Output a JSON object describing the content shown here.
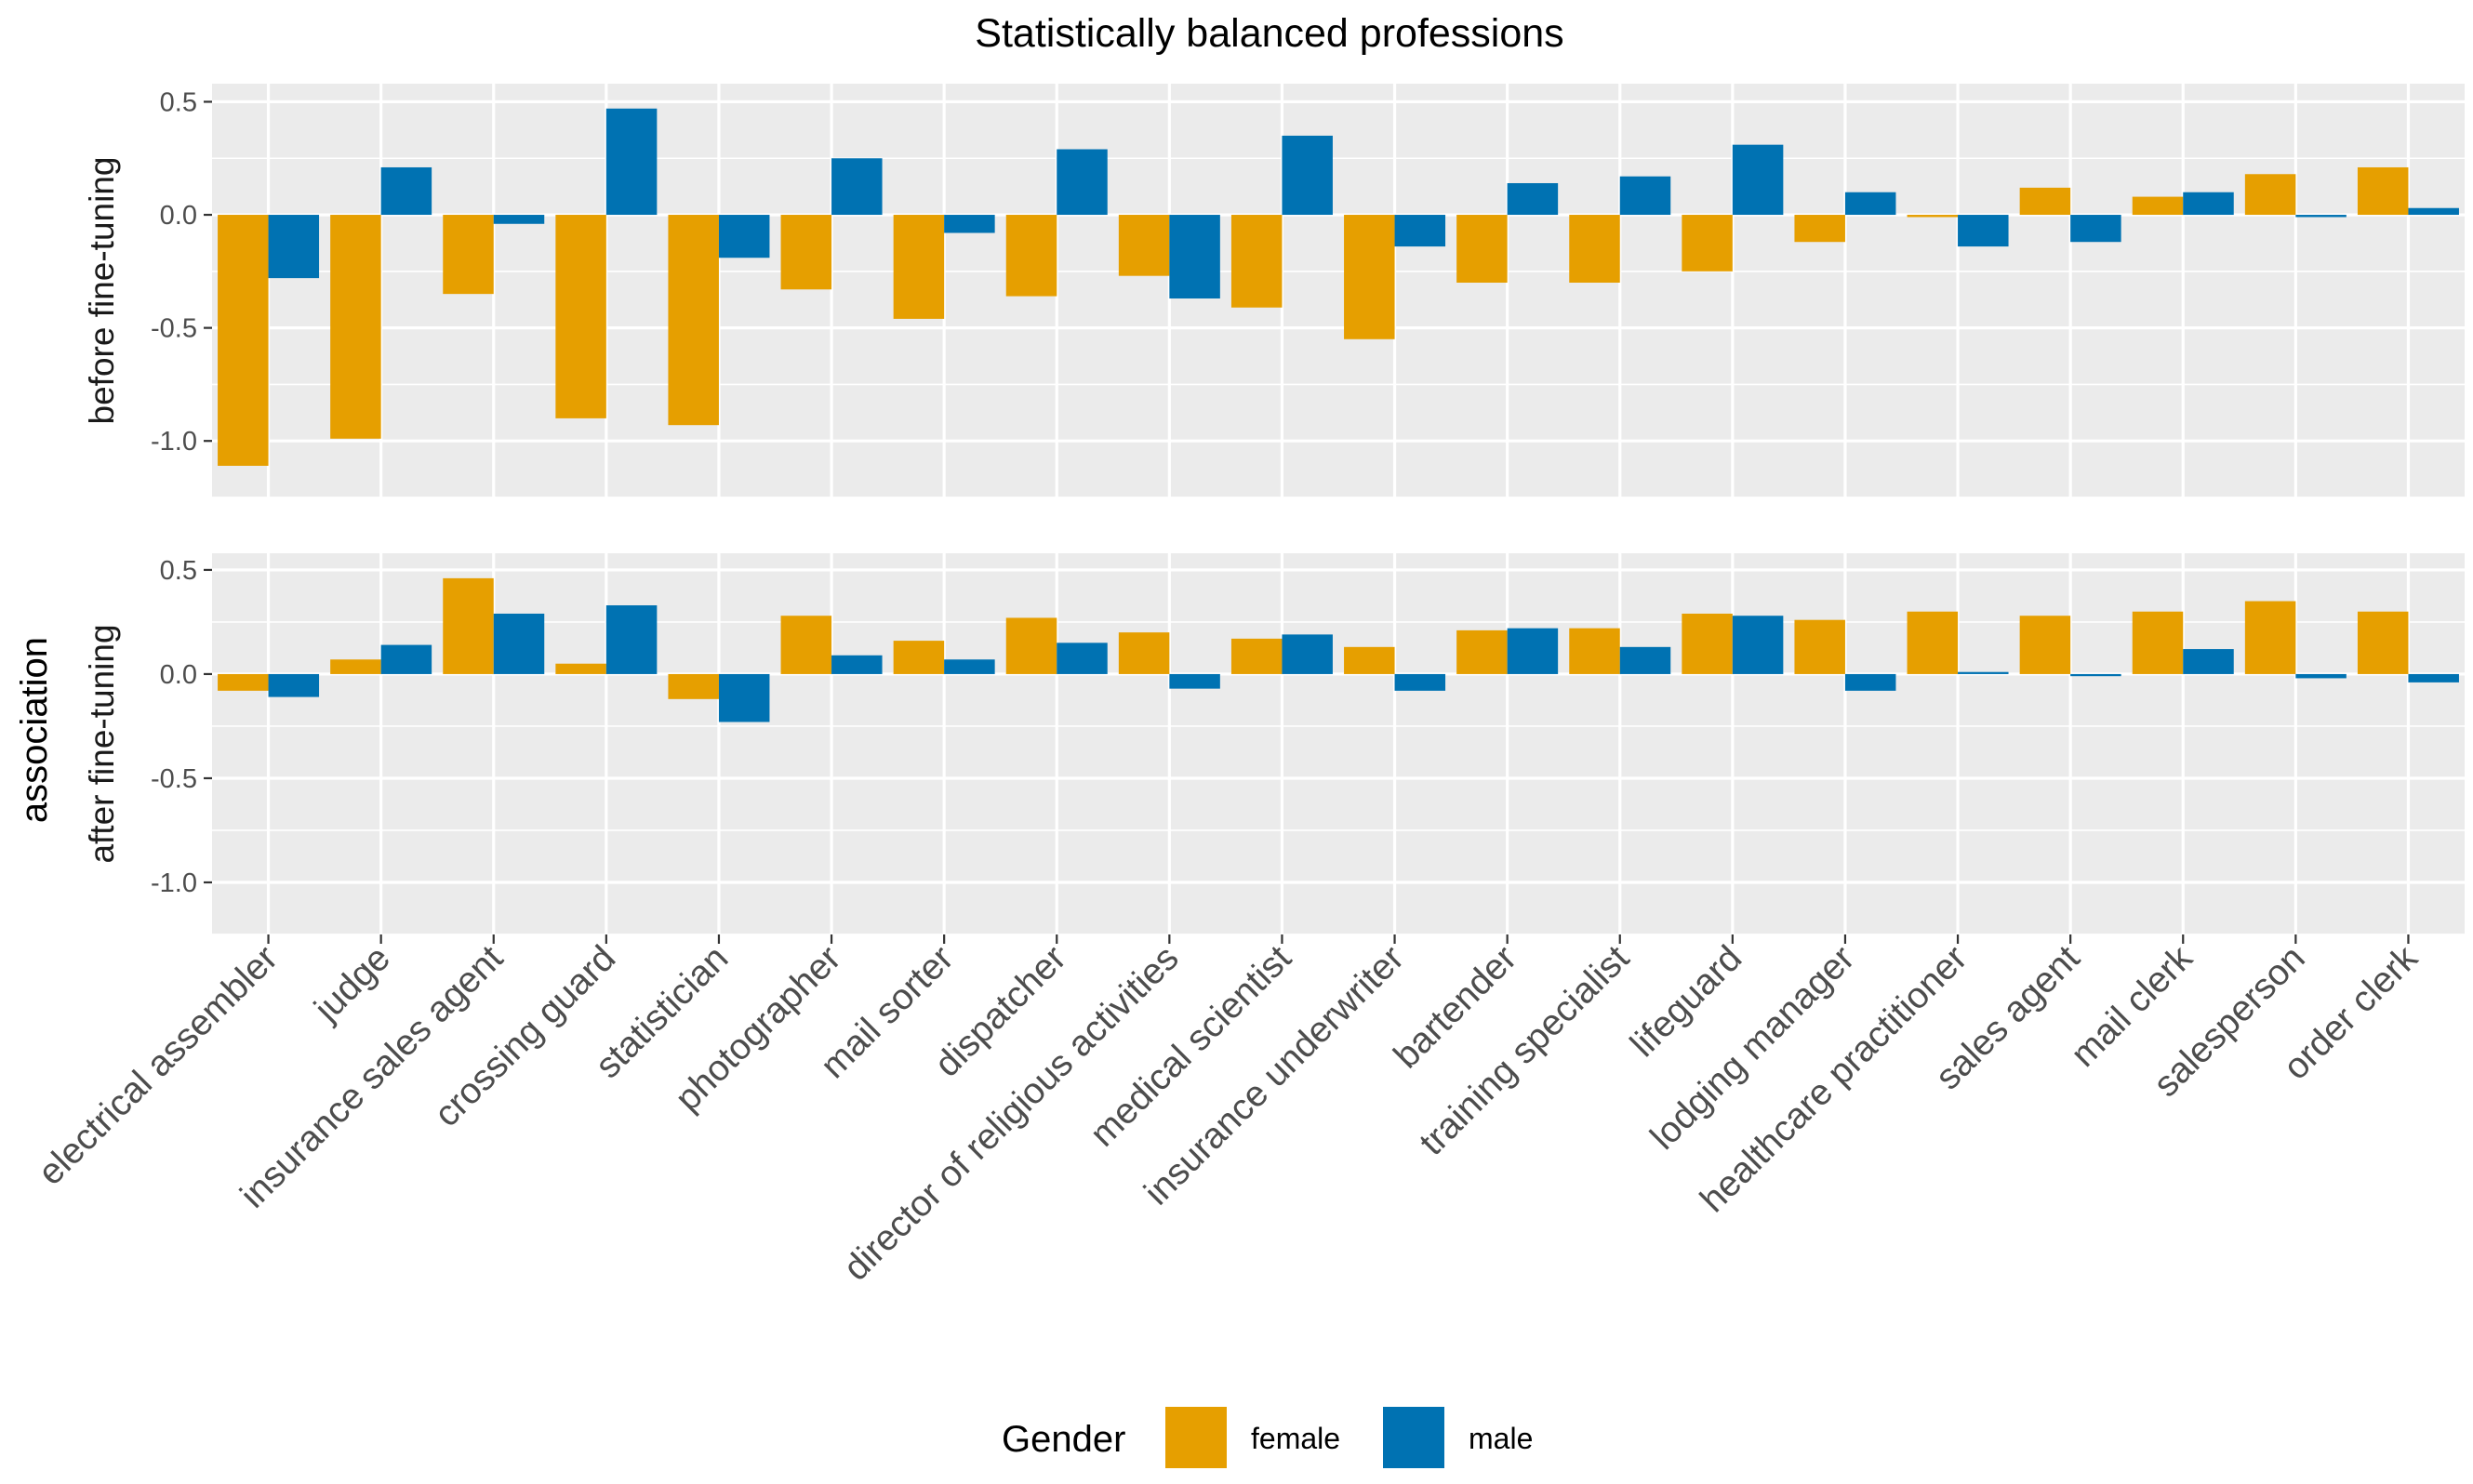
{
  "chart_data": {
    "type": "bar",
    "title": "Statistically balanced professions",
    "ylabel": "association",
    "xlabel": "",
    "ylim": [
      -1.25,
      0.58
    ],
    "yticks": [
      -1.0,
      -0.5,
      0.0,
      0.5
    ],
    "ytick_labels": [
      "-1.0",
      "-0.5",
      "0.0",
      "0.5"
    ],
    "grid": true,
    "categories": [
      "electrical assembler",
      "judge",
      "insurance sales agent",
      "crossing guard",
      "statistician",
      "photographer",
      "mail sorter",
      "dispatcher",
      "director of religious activities",
      "medical scientist",
      "insurance underwriter",
      "bartender",
      "training specialist",
      "lifeguard",
      "lodging manager",
      "healthcare practitioner",
      "sales agent",
      "mail clerk",
      "salesperson",
      "order clerk"
    ],
    "legend": {
      "title": "Gender",
      "position": "bottom",
      "entries": [
        {
          "label": "female",
          "color": "#E69F00"
        },
        {
          "label": "male",
          "color": "#0072B2"
        }
      ]
    },
    "panels": [
      {
        "facet": "before fine-tuning",
        "series": [
          {
            "name": "female",
            "color": "#E69F00",
            "values": [
              -1.11,
              -0.99,
              -0.35,
              -0.9,
              -0.93,
              -0.33,
              -0.46,
              -0.36,
              -0.27,
              -0.41,
              -0.55,
              -0.3,
              -0.3,
              -0.25,
              -0.12,
              -0.01,
              0.12,
              0.08,
              0.18,
              0.21
            ]
          },
          {
            "name": "male",
            "color": "#0072B2",
            "values": [
              -0.28,
              0.21,
              -0.04,
              0.47,
              -0.19,
              0.25,
              -0.08,
              0.29,
              -0.37,
              0.35,
              -0.14,
              0.14,
              0.17,
              0.31,
              0.1,
              -0.14,
              -0.12,
              0.1,
              -0.01,
              0.03
            ]
          }
        ]
      },
      {
        "facet": "after fine-tuning",
        "series": [
          {
            "name": "female",
            "color": "#E69F00",
            "values": [
              -0.08,
              0.07,
              0.46,
              0.05,
              -0.12,
              0.28,
              0.16,
              0.27,
              0.2,
              0.17,
              0.13,
              0.21,
              0.22,
              0.29,
              0.26,
              0.3,
              0.28,
              0.3,
              0.35,
              0.3
            ]
          },
          {
            "name": "male",
            "color": "#0072B2",
            "values": [
              -0.11,
              0.14,
              0.29,
              0.33,
              -0.23,
              0.09,
              0.07,
              0.15,
              -0.07,
              0.19,
              -0.08,
              0.22,
              0.13,
              0.28,
              -0.08,
              0.01,
              -0.01,
              0.12,
              -0.02,
              -0.04
            ]
          }
        ]
      }
    ]
  }
}
